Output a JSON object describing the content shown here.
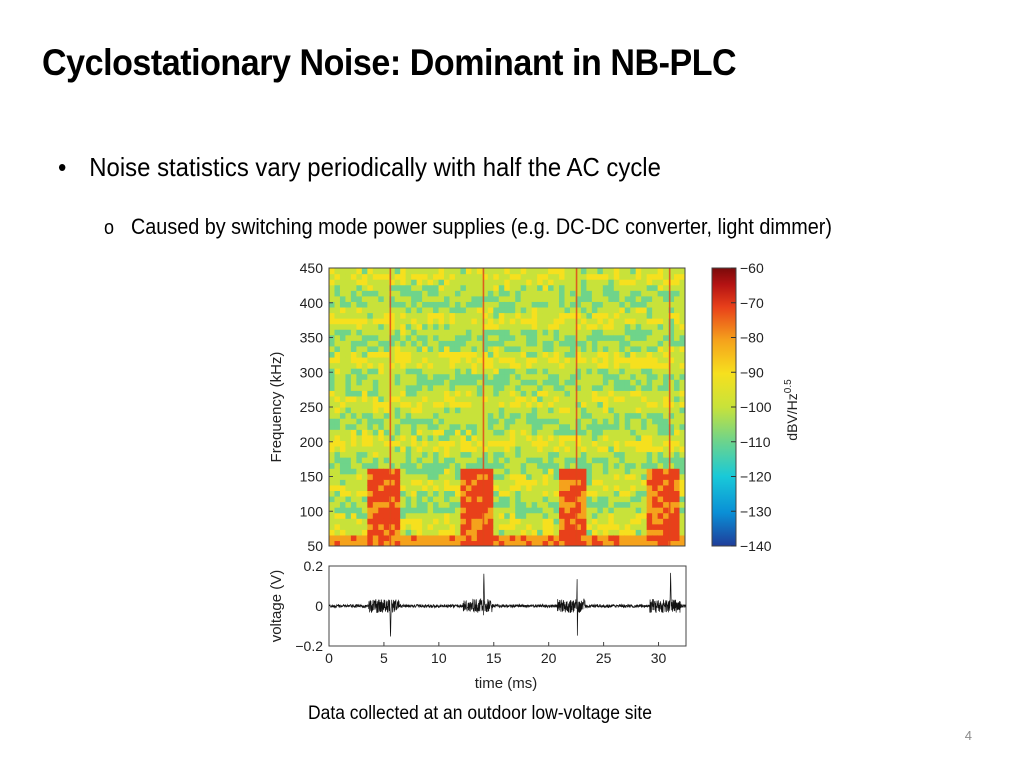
{
  "slide": {
    "title": "Cyclostationary Noise: Dominant in NB-PLC",
    "bullet_marker": "•",
    "bullet": "Noise statistics vary periodically with half the AC cycle",
    "sub_marker": "o",
    "sub_bullet": "Caused by switching mode power supplies (e.g. DC-DC converter, light dimmer)",
    "caption": "Data collected at an outdoor low-voltage site",
    "page_number": "4"
  },
  "colors": {
    "trace": "#111111",
    "spectrogram_base": "#d8e23a",
    "colormap": [
      "#1f3d9a",
      "#0a8fd6",
      "#19c9d8",
      "#6fd48a",
      "#c8e23a",
      "#f6e01e",
      "#f5a21c",
      "#e8401a",
      "#b51313",
      "#7a0a0a"
    ]
  },
  "chart_data": [
    {
      "type": "heatmap",
      "name": "spectrogram",
      "ylabel": "Frequency (kHz)",
      "ylim": [
        50,
        450
      ],
      "xlim": [
        0,
        32.5
      ],
      "yticks": [
        "50",
        "100",
        "150",
        "200",
        "250",
        "300",
        "350",
        "400",
        "450"
      ],
      "colorbar": {
        "label": "dBV/Hz",
        "label_exponent": "0.5",
        "range": [
          -140,
          -60
        ],
        "ticks": [
          "−60",
          "−70",
          "−80",
          "−90",
          "−100",
          "−110",
          "−120",
          "−130",
          "−140"
        ]
      },
      "impulse_lines_ms": [
        5.6,
        14.1,
        22.6,
        31.1
      ],
      "high_noise_bursts_ms": [
        [
          3.6,
          6.4
        ],
        [
          12.2,
          14.9
        ],
        [
          20.8,
          23.3
        ],
        [
          29.2,
          32.0
        ]
      ],
      "burst_band_khz": [
        50,
        160
      ],
      "background_level_dbv": -105,
      "burst_level_dbv": -82
    },
    {
      "type": "line",
      "name": "voltage-trace",
      "xlabel": "time (ms)",
      "ylabel": "voltage (V)",
      "xlim": [
        0,
        32.5
      ],
      "ylim": [
        -0.2,
        0.2
      ],
      "xticks": [
        "0",
        "5",
        "10",
        "15",
        "20",
        "25",
        "30"
      ],
      "yticks": [
        "0.2",
        "0",
        "−0.2"
      ],
      "impulses_ms": [
        5.6,
        14.1,
        22.6,
        31.1
      ],
      "bursts_ms": [
        [
          3.6,
          6.4
        ],
        [
          12.2,
          14.9
        ],
        [
          20.8,
          23.3
        ],
        [
          29.2,
          32.0
        ]
      ],
      "background_amplitude_v": 0.008,
      "burst_amplitude_v": 0.035,
      "impulse_peak_v": 0.17
    }
  ]
}
